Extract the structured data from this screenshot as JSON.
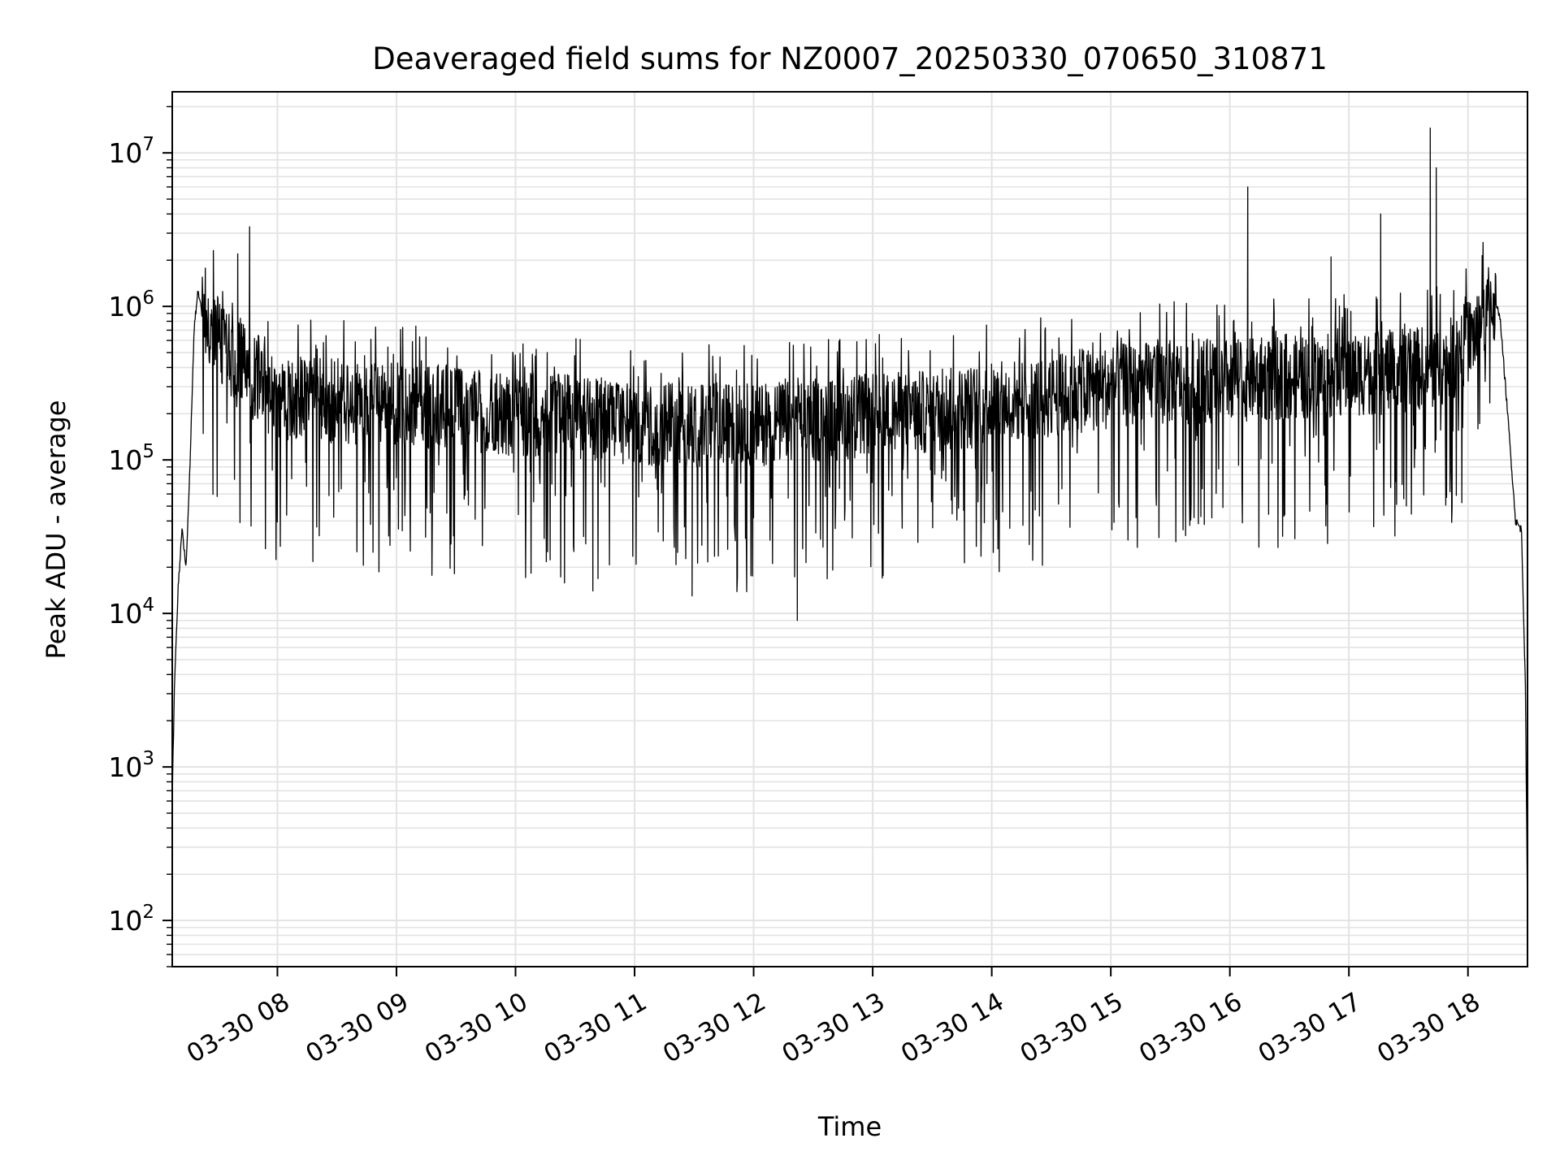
{
  "chart_data": {
    "type": "line",
    "title": "Deaveraged field sums for NZ0007_20250330_070650_310871",
    "xlabel": "Time",
    "ylabel": "Peak ADU - average",
    "xscale": "time",
    "yscale": "log",
    "xlim": [
      "2025-03-30 07:07",
      "2025-03-30 18:30"
    ],
    "ylim": [
      50,
      25000000
    ],
    "xticks": [
      {
        "value": "2025-03-30 08:00",
        "label": "03-30 08"
      },
      {
        "value": "2025-03-30 09:00",
        "label": "03-30 09"
      },
      {
        "value": "2025-03-30 10:00",
        "label": "03-30 10"
      },
      {
        "value": "2025-03-30 11:00",
        "label": "03-30 11"
      },
      {
        "value": "2025-03-30 12:00",
        "label": "03-30 12"
      },
      {
        "value": "2025-03-30 13:00",
        "label": "03-30 13"
      },
      {
        "value": "2025-03-30 14:00",
        "label": "03-30 14"
      },
      {
        "value": "2025-03-30 15:00",
        "label": "03-30 15"
      },
      {
        "value": "2025-03-30 16:00",
        "label": "03-30 16"
      },
      {
        "value": "2025-03-30 17:00",
        "label": "03-30 17"
      },
      {
        "value": "2025-03-30 18:00",
        "label": "03-30 18"
      }
    ],
    "yticks": [
      {
        "value": 100,
        "base": "10",
        "exp": "2"
      },
      {
        "value": 1000,
        "base": "10",
        "exp": "3"
      },
      {
        "value": 10000,
        "base": "10",
        "exp": "4"
      },
      {
        "value": 100000,
        "base": "10",
        "exp": "5"
      },
      {
        "value": 1000000,
        "base": "10",
        "exp": "6"
      },
      {
        "value": 10000000,
        "base": "10",
        "exp": "7"
      }
    ],
    "grid": true,
    "legend": "none",
    "line_color": "#000000",
    "grid_color": "#e3e3e3",
    "series": [
      {
        "x": [
          "2025-03-30 07:07",
          "2025-03-30 07:08",
          "2025-03-30 07:10",
          "2025-03-30 07:12",
          "2025-03-30 07:14",
          "2025-03-30 07:16",
          "2025-03-30 07:18",
          "2025-03-30 07:20",
          "2025-03-30 07:24",
          "2025-03-30 07:28",
          "2025-03-30 07:32",
          "2025-03-30 07:35",
          "2025-03-30 07:38",
          "2025-03-30 07:42",
          "2025-03-30 07:46",
          "2025-03-30 07:50",
          "2025-03-30 07:55",
          "2025-03-30 08:00",
          "2025-03-30 08:15",
          "2025-03-30 08:30",
          "2025-03-30 09:00",
          "2025-03-30 09:30",
          "2025-03-30 10:00",
          "2025-03-30 10:30",
          "2025-03-30 11:00",
          "2025-03-30 11:30",
          "2025-03-30 12:00",
          "2025-03-30 12:30",
          "2025-03-30 13:00",
          "2025-03-30 13:30",
          "2025-03-30 14:00",
          "2025-03-30 14:30",
          "2025-03-30 15:00",
          "2025-03-30 15:30",
          "2025-03-30 16:00",
          "2025-03-30 16:30",
          "2025-03-30 17:00",
          "2025-03-30 17:30",
          "2025-03-30 17:50",
          "2025-03-30 18:05",
          "2025-03-30 18:12",
          "2025-03-30 18:16",
          "2025-03-30 18:20",
          "2025-03-30 18:24",
          "2025-03-30 18:27",
          "2025-03-30 18:29",
          "2025-03-30 18:30"
        ],
        "y": [
          600,
          3000,
          15000,
          35000,
          20000,
          100000,
          700000,
          1300000,
          600000,
          700000,
          550000,
          500000,
          400000,
          450000,
          300000,
          350000,
          280000,
          230000,
          250000,
          240000,
          230000,
          210000,
          200000,
          190000,
          175000,
          165000,
          170000,
          180000,
          195000,
          205000,
          230000,
          260000,
          300000,
          320000,
          330000,
          340000,
          360000,
          380000,
          430000,
          700000,
          1100000,
          900000,
          200000,
          40000,
          35000,
          3000,
          100
        ]
      }
    ],
    "spikes": {
      "x": [
        "2025-03-30 07:46",
        "2025-03-30 07:40",
        "2025-03-30 16:09",
        "2025-03-30 16:51",
        "2025-03-30 17:16",
        "2025-03-30 17:41",
        "2025-03-30 17:44",
        "2025-03-30 12:22",
        "2025-03-30 11:29",
        "2025-03-30 10:39"
      ],
      "y": [
        3300000,
        2200000,
        6000000,
        2100000,
        4000000,
        14500000,
        8000000,
        9000,
        13000,
        14000
      ]
    }
  }
}
